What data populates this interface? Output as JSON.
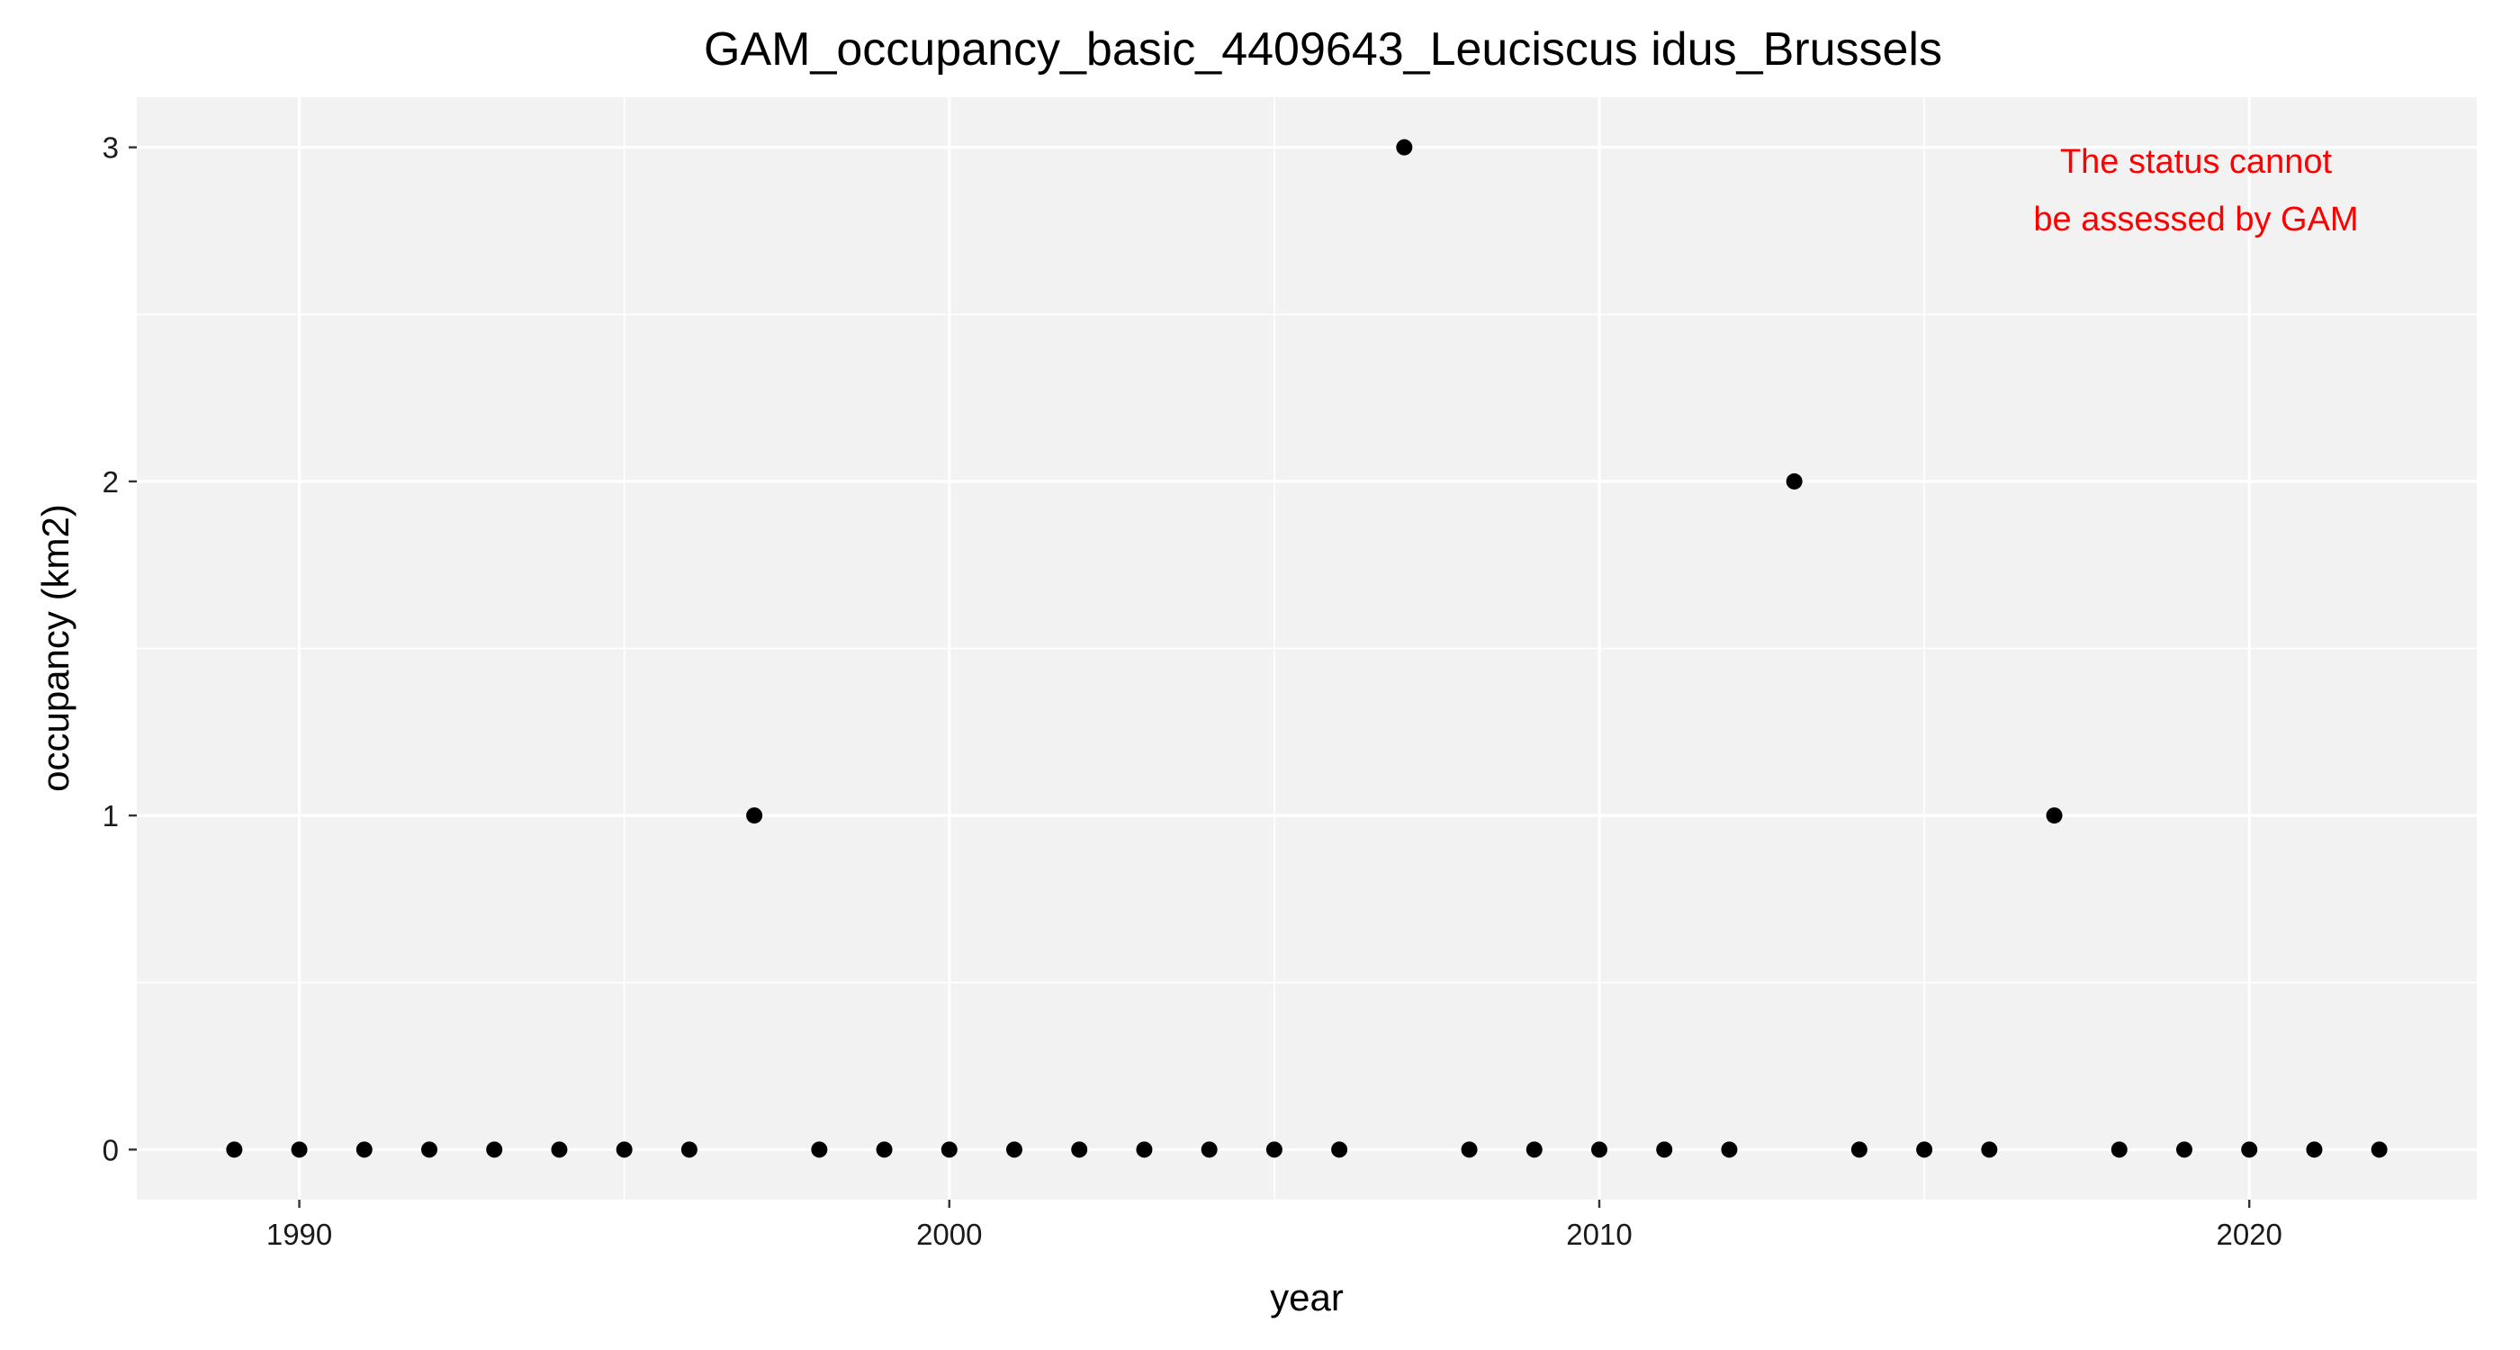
{
  "chart_data": {
    "type": "scatter",
    "title": "GAM_occupancy_basic_4409643_Leuciscus idus_Brussels",
    "xlabel": "year",
    "ylabel": "occupancy (km2)",
    "xlim": [
      1987.5,
      2023.5
    ],
    "ylim": [
      -0.15,
      3.15
    ],
    "x_ticks": [
      1990,
      2000,
      2010,
      2020
    ],
    "x_tick_labels": [
      "1990",
      "2000",
      "2010",
      "2020"
    ],
    "y_ticks": [
      0,
      1,
      2,
      3
    ],
    "y_tick_labels": [
      "0",
      "1",
      "2",
      "3"
    ],
    "grid": true,
    "legend": "none",
    "annotation": {
      "lines": [
        "The status cannot",
        "be assessed by GAM"
      ],
      "color": "#ff0000"
    },
    "colors": {
      "panel_background": "#f2f2f2",
      "grid": "#ffffff",
      "points": "#000000"
    },
    "x": [
      1989,
      1990,
      1991,
      1992,
      1993,
      1994,
      1995,
      1996,
      1997,
      1998,
      1999,
      2000,
      2001,
      2002,
      2003,
      2004,
      2005,
      2006,
      2007,
      2008,
      2009,
      2010,
      2011,
      2012,
      2013,
      2014,
      2015,
      2016,
      2017,
      2018,
      2019,
      2020,
      2021,
      2022
    ],
    "y": [
      0,
      0,
      0,
      0,
      0,
      0,
      0,
      0,
      1,
      0,
      0,
      0,
      0,
      0,
      0,
      0,
      0,
      0,
      3,
      0,
      0,
      0,
      0,
      0,
      2,
      0,
      0,
      0,
      1,
      0,
      0,
      0,
      0,
      0
    ]
  }
}
